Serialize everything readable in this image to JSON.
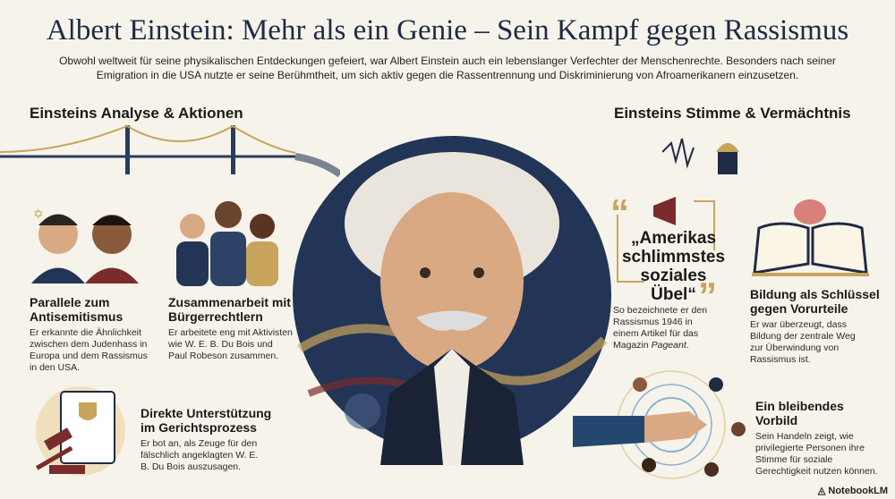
{
  "title": "Albert Einstein: Mehr als ein Genie – Sein Kampf gegen Rassismus",
  "intro": "Obwohl weltweit für seine physikalischen Entdeckungen gefeiert, war Albert Einstein auch ein lebenslanger Verfechter der Menschenrechte. Besonders nach seiner Emigration in die USA nutzte er seine Berühmtheit, um sich aktiv gegen die Rassentrennung und Diskriminierung von Afroamerikanern einzusetzen.",
  "left": {
    "heading": "Einsteins Analyse & Aktionen",
    "items": [
      {
        "title": "Parallele zum Antisemitismus",
        "text": "Er erkannte die Ähnlichkeit zwischen dem Judenhass in Europa und dem Rassismus in den USA."
      },
      {
        "title": "Zusammenarbeit mit Bürgerrechtlern",
        "text": "Er arbeitete eng mit Aktivisten wie W. E. B. Du Bois und Paul Robeson zusammen."
      },
      {
        "title": "Direkte Unterstützung im Gerichtsprozess",
        "text": "Er bot an, als Zeuge für den fälschlich angeklagten W. E. B. Du Bois auszusagen."
      }
    ]
  },
  "right": {
    "heading": "Einsteins Stimme & Vermächtnis",
    "quote": "„Amerikas schlimmstes soziales Übel“",
    "quote_text": "So bezeichnete er den Rassismus 1946 in einem Artikel für das Magazin",
    "quote_magazine": "Pageant",
    "items": [
      {
        "title": "Bildung als Schlüssel gegen Vorurteile",
        "text": "Er war überzeugt, dass Bildung der zentrale Weg zur Überwindung von Rassismus ist."
      },
      {
        "title": "Ein bleibendes Vorbild",
        "text": "Sein Handeln zeigt, wie privilegierte Personen ihre Stimme für soziale Gerechtigkeit nutzen können."
      }
    ]
  },
  "brand": "NotebookLM",
  "colors": {
    "navy": "#1f2a44",
    "gold": "#c9a45c",
    "maroon": "#7a2c2c",
    "background": "#f6f3ea"
  }
}
